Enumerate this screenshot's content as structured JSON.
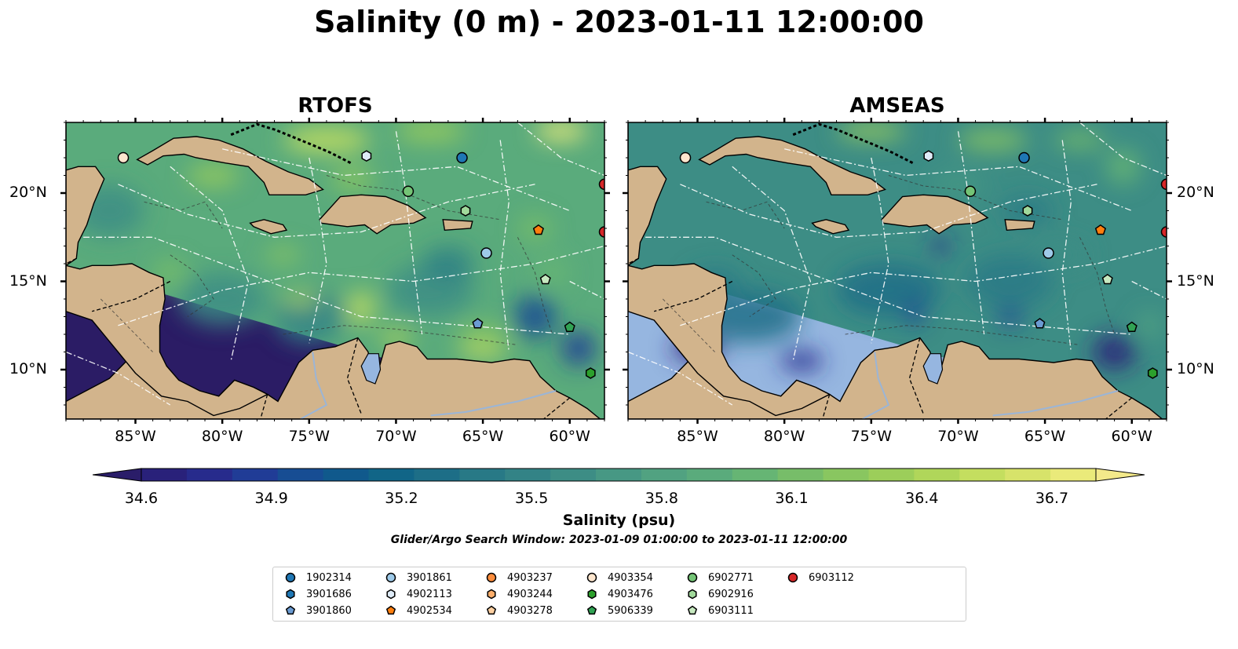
{
  "title": "Salinity (0 m) - 2023-01-11 12:00:00",
  "panels": [
    {
      "name": "RTOFS",
      "variant": "rtofs"
    },
    {
      "name": "AMSEAS",
      "variant": "amseas"
    }
  ],
  "lon_labels": [
    "85°W",
    "80°W",
    "75°W",
    "70°W",
    "65°W",
    "60°W"
  ],
  "lat_labels": [
    "20°N",
    "15°N",
    "10°N"
  ],
  "colorbar": {
    "label": "Salinity (psu)",
    "ticks": [
      "34.6",
      "34.9",
      "35.2",
      "35.5",
      "35.8",
      "36.1",
      "36.4",
      "36.7"
    ],
    "colors": [
      "#2a1d69",
      "#29217a",
      "#272b8c",
      "#203c96",
      "#174d93",
      "#10598c",
      "#116587",
      "#1d6e87",
      "#287986",
      "#338386",
      "#3d8d85",
      "#479884",
      "#51a281",
      "#5aab7c",
      "#66b574",
      "#77bd69",
      "#89c660",
      "#9cce5a",
      "#b0d65a",
      "#c4de5f",
      "#d7e36a",
      "#eaea7a",
      "#f3e98a"
    ]
  },
  "search_window": "Glider/Argo Search Window: 2023-01-09 01:00:00 to 2023-01-11 12:00:00",
  "legend": [
    {
      "id": "1902314",
      "marker": "circle",
      "color": "#1f77b4"
    },
    {
      "id": "3901686",
      "marker": "hexagon",
      "color": "#1f77b4"
    },
    {
      "id": "3901860",
      "marker": "pentagon",
      "color": "#6b9bd2"
    },
    {
      "id": "3901861",
      "marker": "circle",
      "color": "#9ecae9"
    },
    {
      "id": "4902113",
      "marker": "hexagon",
      "color": "#deebf7"
    },
    {
      "id": "4902534",
      "marker": "pentagon",
      "color": "#ff7f0e"
    },
    {
      "id": "4903237",
      "marker": "circle",
      "color": "#fd8d3c"
    },
    {
      "id": "4903244",
      "marker": "hexagon",
      "color": "#fdae6b"
    },
    {
      "id": "4903278",
      "marker": "pentagon",
      "color": "#fdd0a2"
    },
    {
      "id": "4903354",
      "marker": "circle",
      "color": "#fee6ce"
    },
    {
      "id": "4903476",
      "marker": "hexagon",
      "color": "#2ca02c"
    },
    {
      "id": "5906339",
      "marker": "pentagon",
      "color": "#31a354"
    },
    {
      "id": "6902771",
      "marker": "circle",
      "color": "#74c476"
    },
    {
      "id": "6902916",
      "marker": "hexagon",
      "color": "#a1d99b"
    },
    {
      "id": "6903111",
      "marker": "pentagon",
      "color": "#c7e9c0"
    },
    {
      "id": "6903112",
      "marker": "circle",
      "color": "#d62728"
    }
  ],
  "colors": {
    "land": "#d2b48c",
    "outside_ocean_rtofs": "#2b1c65",
    "outside_ocean_amseas": "#96b6e0",
    "river": "#9bb5d6"
  }
}
